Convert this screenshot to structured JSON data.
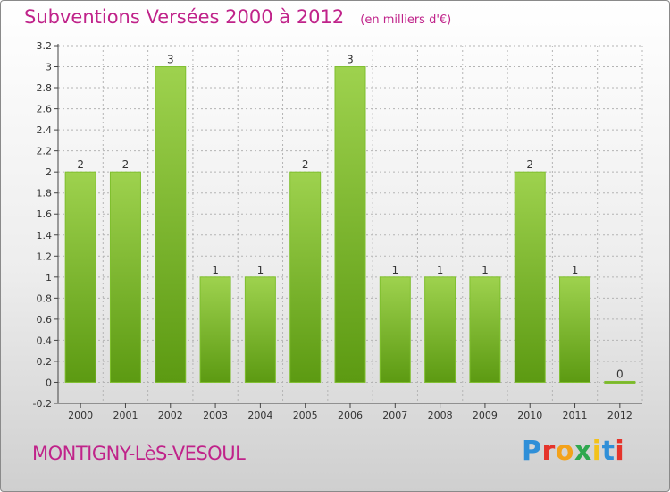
{
  "title": "Subventions Versées 2000 à 2012",
  "subtitle": "(en milliers d'€)",
  "commune": "MONTIGNY-LèS-VESOUL",
  "brand": {
    "text": "Proxiti",
    "letter_colors": [
      "#2f8fd8",
      "#e5342b",
      "#f3a21b",
      "#2fa84f",
      "#f3c21b",
      "#2f8fd8",
      "#e5342b"
    ]
  },
  "colors": {
    "title": "#c0238a",
    "bar_light": "#9ed24e",
    "bar_dark": "#5c9a12",
    "axis": "#444444",
    "grid": "#b4b4b4"
  },
  "chart_data": {
    "type": "bar",
    "categories": [
      "2000",
      "2001",
      "2002",
      "2003",
      "2004",
      "2005",
      "2006",
      "2007",
      "2008",
      "2009",
      "2010",
      "2011",
      "2012"
    ],
    "values": [
      2,
      2,
      3,
      1,
      1,
      2,
      3,
      1,
      1,
      1,
      2,
      1,
      0
    ],
    "data_labels": [
      "2",
      "2",
      "3",
      "1",
      "1",
      "2",
      "3",
      "1",
      "1",
      "1",
      "2",
      "1",
      "0"
    ],
    "y_ticks": [
      -0.2,
      0,
      0.2,
      0.4,
      0.6,
      0.8,
      1,
      1.2,
      1.4,
      1.6,
      1.8,
      2,
      2.2,
      2.4,
      2.6,
      2.8,
      3,
      3.2
    ],
    "y_tick_labels": [
      "-0.2",
      "0",
      "0.2",
      "0.4",
      "0.6",
      "0.8",
      "1",
      "1.2",
      "1.4",
      "1.6",
      "1.8",
      "2",
      "2.2",
      "2.4",
      "2.6",
      "2.8",
      "3",
      "3.2"
    ],
    "ylim": [
      -0.2,
      3.2
    ],
    "grid": true,
    "xlabel": "",
    "ylabel": ""
  }
}
